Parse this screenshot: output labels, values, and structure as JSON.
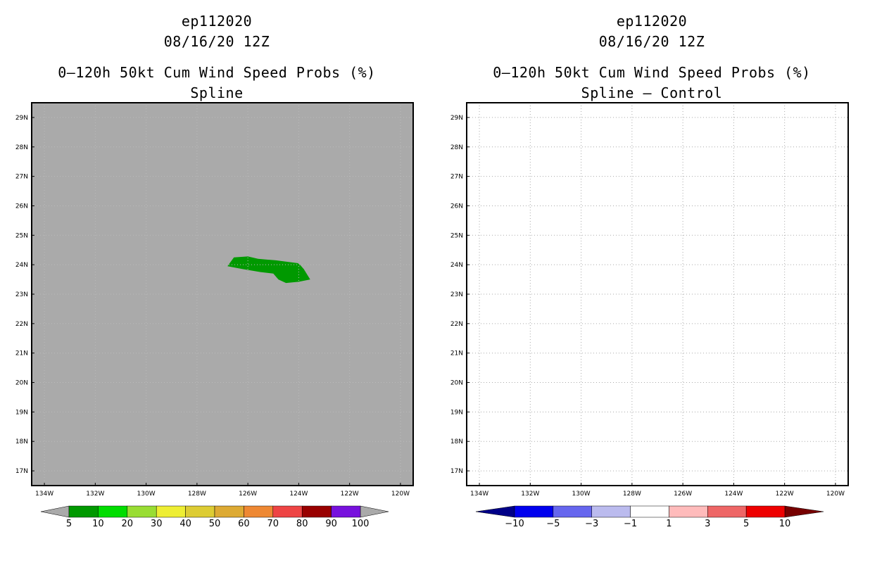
{
  "panels": [
    {
      "id": "left",
      "storm": "ep112020",
      "datetime": "08/16/20 12Z",
      "title": "0–120h 50kt Cum Wind Speed Probs (%)",
      "subtitle": "Spline",
      "background": "#aaaaaa",
      "grid": true,
      "x_ticks": [
        "134W",
        "132W",
        "130W",
        "128W",
        "126W",
        "124W",
        "122W",
        "120W"
      ],
      "y_ticks": [
        "17N",
        "18N",
        "19N",
        "20N",
        "21N",
        "22N",
        "23N",
        "24N",
        "25N",
        "26N",
        "27N",
        "28N",
        "29N"
      ]
    },
    {
      "id": "right",
      "storm": "ep112020",
      "datetime": "08/16/20 12Z",
      "title": "0–120h 50kt Cum Wind Speed Probs (%)",
      "subtitle": "Spline – Control",
      "background": "#ffffff",
      "grid": true,
      "x_ticks": [
        "134W",
        "132W",
        "130W",
        "128W",
        "126W",
        "124W",
        "122W",
        "120W"
      ],
      "y_ticks": [
        "17N",
        "18N",
        "19N",
        "20N",
        "21N",
        "22N",
        "23N",
        "24N",
        "25N",
        "26N",
        "27N",
        "28N",
        "29N"
      ]
    }
  ],
  "chart_data": [
    {
      "type": "map-contour",
      "title": "0–120h 50kt Cum Wind Speed Probs (%) — Spline",
      "xlim_lon": [
        -134.5,
        -119.5
      ],
      "ylim_lat": [
        16.5,
        29.5
      ],
      "filled_regions": [
        {
          "level_range": [
            5,
            10
          ],
          "color": "#009900",
          "polygon_lonlat": [
            [
              -126.8,
              23.95
            ],
            [
              -126.55,
              24.25
            ],
            [
              -126.0,
              24.28
            ],
            [
              -125.6,
              24.2
            ],
            [
              -124.9,
              24.15
            ],
            [
              -124.0,
              24.05
            ],
            [
              -123.8,
              23.85
            ],
            [
              -123.55,
              23.5
            ],
            [
              -124.0,
              23.42
            ],
            [
              -124.5,
              23.38
            ],
            [
              -124.8,
              23.5
            ],
            [
              -125.0,
              23.7
            ],
            [
              -125.5,
              23.75
            ],
            [
              -126.2,
              23.85
            ]
          ]
        }
      ],
      "colorbar": {
        "labels": [
          "5",
          "10",
          "20",
          "30",
          "40",
          "50",
          "60",
          "70",
          "80",
          "90",
          "100"
        ],
        "colors": [
          "#009900",
          "#00dd00",
          "#99dd33",
          "#eeee33",
          "#ddcc33",
          "#ddaa33",
          "#ee8833",
          "#ee4444",
          "#990000",
          "#7711dd"
        ],
        "under_color": "#aaaaaa",
        "over_color": "#aaaaaa"
      }
    },
    {
      "type": "map-contour",
      "title": "0–120h 50kt Cum Wind Speed Probs (%) — Spline – Control",
      "xlim_lon": [
        -134.5,
        -119.5
      ],
      "ylim_lat": [
        16.5,
        29.5
      ],
      "filled_regions": [],
      "colorbar": {
        "labels": [
          "−10",
          "−5",
          "−3",
          "−1",
          "1",
          "3",
          "5",
          "10"
        ],
        "colors": [
          "#0000ee",
          "#6666ee",
          "#bbbbee",
          "#ffffff",
          "#ffbbbb",
          "#ee6666",
          "#ee0000"
        ],
        "under_color": "#000088",
        "over_color": "#770000"
      }
    }
  ]
}
